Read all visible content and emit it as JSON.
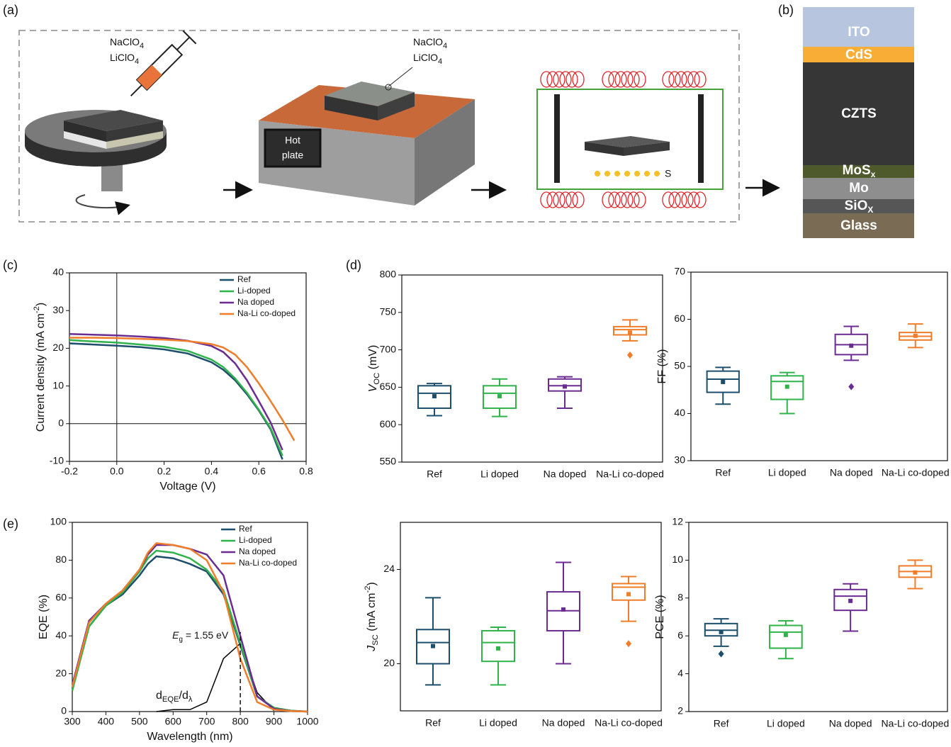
{
  "panel_labels": [
    "(a)",
    "(b)",
    "(c)",
    "(d)",
    "(e)"
  ],
  "schematic": {
    "spin_labels": [
      [
        "NaClO",
        {
          "sub": "4"
        }
      ],
      [
        "LiClO",
        {
          "sub": "4"
        }
      ]
    ],
    "hotplate_labels": [
      [
        "NaClO",
        {
          "sub": "4"
        }
      ],
      [
        "LiClO",
        {
          "sub": "4"
        }
      ]
    ],
    "hot_plate": [
      "Hot",
      "plate"
    ],
    "sulfur": "S"
  },
  "stack": {
    "layers": [
      "ITO",
      "CdS",
      "CZTS",
      [
        "MoS",
        {
          "sub": "x"
        }
      ],
      "Mo",
      [
        "SiO",
        {
          "sub": "X"
        }
      ],
      "Glass"
    ]
  },
  "chart_data": [
    {
      "type": "line",
      "xlabel": "Voltage (V)",
      "ylabel": [
        "Current density (mA cm",
        {
          "sup": "-2"
        },
        ")"
      ],
      "xlim": [
        -0.2,
        0.8
      ],
      "xticks": [
        -0.2,
        {
          "value": 0,
          "label": "0.0"
        },
        0.2,
        0.4,
        0.6,
        0.8
      ],
      "ylim": [
        -10,
        40
      ],
      "yticks": [
        -10,
        0,
        10,
        20,
        30,
        40
      ],
      "axes_at_zero": true,
      "legend": "upper right",
      "x": [
        -0.2,
        -0.1,
        0,
        0.1,
        0.2,
        0.3,
        0.4,
        0.45,
        0.5,
        0.55,
        0.6,
        0.65,
        0.7,
        0.75
      ],
      "series": [
        {
          "name": "Ref",
          "color": "#1d4e6b",
          "values": [
            21.3,
            21.0,
            20.7,
            20.3,
            19.7,
            18.6,
            16.3,
            14.3,
            11.5,
            7.8,
            3.5,
            -1.5,
            -9.5,
            null
          ]
        },
        {
          "name": "Li-doped",
          "color": "#2fb34a",
          "values": [
            22.2,
            21.8,
            21.5,
            21.0,
            20.4,
            19.3,
            17.0,
            15.0,
            12.0,
            8.2,
            3.7,
            -1.2,
            -8.5,
            null
          ]
        },
        {
          "name": "Na doped",
          "color": "#6a2c91",
          "values": [
            23.8,
            23.6,
            23.4,
            23.1,
            22.7,
            22.0,
            20.6,
            19.0,
            16.0,
            11.5,
            6.0,
            0.3,
            -7.0,
            null
          ]
        },
        {
          "name": "Na-Li co-doped",
          "color": "#f07d2a",
          "values": [
            22.8,
            22.8,
            22.7,
            22.5,
            22.3,
            21.9,
            21.1,
            20.2,
            18.3,
            15.0,
            10.7,
            6.0,
            1.0,
            -4.5
          ]
        }
      ]
    },
    {
      "type": "box",
      "ylabel": [
        {
          "i": "V"
        },
        {
          "sub": "OC"
        },
        " (mV)"
      ],
      "ylim": [
        550,
        800
      ],
      "yticks": [
        550,
        600,
        650,
        700,
        750,
        800
      ],
      "categories": [
        "Ref",
        "Li doped",
        "Na doped",
        "Na-Li co-doped"
      ],
      "colors": [
        "#1d4e6b",
        "#2fb34a",
        "#6a2c91",
        "#f07d2a"
      ],
      "boxes": [
        {
          "min": 612,
          "q1": 622,
          "median": 642,
          "q3": 652,
          "max": 655,
          "mean": 638,
          "outliers": []
        },
        {
          "min": 611,
          "q1": 622,
          "median": 642,
          "q3": 652,
          "max": 661,
          "mean": 638,
          "outliers": []
        },
        {
          "min": 622,
          "q1": 645,
          "median": 652,
          "q3": 661,
          "max": 664,
          "mean": 651,
          "outliers": []
        },
        {
          "min": 712,
          "q1": 720,
          "median": 727,
          "q3": 731,
          "max": 740,
          "mean": 723,
          "outliers": [
            693
          ]
        }
      ]
    },
    {
      "type": "box",
      "ylabel": "FF (%)",
      "ylim": [
        30,
        70
      ],
      "yticks": [
        30,
        40,
        50,
        60,
        70
      ],
      "categories": [
        "Ref",
        "Li doped",
        "Na doped",
        "Na-Li co-doped"
      ],
      "colors": [
        "#1d4e6b",
        "#2fb34a",
        "#6a2c91",
        "#f07d2a"
      ],
      "boxes": [
        {
          "min": 42,
          "q1": 44.5,
          "median": 47.3,
          "q3": 49,
          "max": 49.8,
          "mean": 46.7,
          "outliers": []
        },
        {
          "min": 40,
          "q1": 43,
          "median": 46.8,
          "q3": 48,
          "max": 48.7,
          "mean": 45.7,
          "outliers": []
        },
        {
          "min": 51.3,
          "q1": 52.5,
          "median": 54.6,
          "q3": 56.8,
          "max": 58.5,
          "mean": 54.4,
          "outliers": [
            45.7
          ]
        },
        {
          "min": 54,
          "q1": 55.6,
          "median": 56.4,
          "q3": 57.2,
          "max": 59,
          "mean": 56.5,
          "outliers": []
        }
      ]
    },
    {
      "type": "line",
      "xlabel": "Wavelength (nm)",
      "ylabel": "EQE (%)",
      "xlim": [
        300,
        1000
      ],
      "xticks": [
        300,
        400,
        500,
        600,
        700,
        800,
        900,
        1000
      ],
      "ylim": [
        0,
        100
      ],
      "yticks": [
        0,
        20,
        40,
        60,
        80,
        100
      ],
      "legend": "upper right",
      "x": [
        300,
        350,
        400,
        450,
        500,
        525,
        550,
        600,
        650,
        700,
        750,
        800,
        850,
        900,
        950,
        1000
      ],
      "series": [
        {
          "name": "Ref",
          "color": "#1d4e6b",
          "values": [
            12,
            45,
            56,
            62,
            72,
            78,
            82,
            81,
            78,
            74,
            62,
            35,
            8,
            2,
            0.5,
            0
          ]
        },
        {
          "name": "Li-doped",
          "color": "#2fb34a",
          "values": [
            11,
            45,
            56,
            63,
            74,
            81,
            85,
            84,
            81,
            75,
            64,
            36,
            8,
            2,
            0.5,
            0
          ]
        },
        {
          "name": "Na doped",
          "color": "#6a2c91",
          "values": [
            14,
            48,
            57,
            64,
            75,
            83,
            88,
            88,
            86,
            83,
            72,
            40,
            8,
            1.5,
            0.3,
            0
          ]
        },
        {
          "name": "Na-Li co-doped",
          "color": "#f07d2a",
          "values": [
            13,
            47,
            57,
            64,
            75,
            84,
            89,
            88,
            86,
            80,
            63,
            28,
            5,
            1,
            0.3,
            0
          ]
        }
      ],
      "curve": {
        "color": "#000000",
        "values": [
          null,
          null,
          null,
          null,
          null,
          null,
          0,
          1,
          1,
          5,
          28,
          36,
          10,
          0.5,
          null,
          null
        ]
      },
      "curve_label": [
        "d",
        {
          "sub": "EQE"
        },
        "/d",
        {
          "sub": "λ"
        }
      ],
      "marker_line": {
        "x": 800,
        "label": [
          {
            "i": "E"
          },
          {
            "sub": "g"
          },
          " = 1.55 eV"
        ]
      }
    },
    {
      "type": "box",
      "ylabel": [
        {
          "i": "J"
        },
        {
          "sub": "SC"
        },
        " (mA cm",
        {
          "sup": "-2"
        },
        ")"
      ],
      "ylim": [
        18,
        26
      ],
      "yticks": [
        20,
        24
      ],
      "categories": [
        "Ref",
        "Li doped",
        "Na doped",
        "Na-Li co-doped"
      ],
      "colors": [
        "#1d4e6b",
        "#2fb34a",
        "#6a2c91",
        "#f07d2a"
      ],
      "boxes": [
        {
          "min": 19.1,
          "q1": 20,
          "median": 20.9,
          "q3": 21.45,
          "max": 22.8,
          "mean": 20.75,
          "outliers": []
        },
        {
          "min": 19.1,
          "q1": 20.1,
          "median": 20.9,
          "q3": 21.4,
          "max": 21.55,
          "mean": 20.65,
          "outliers": []
        },
        {
          "min": 20,
          "q1": 21.4,
          "median": 22.25,
          "q3": 23.05,
          "max": 24.3,
          "mean": 22.3,
          "outliers": []
        },
        {
          "min": 21.8,
          "q1": 22.7,
          "median": 23.25,
          "q3": 23.4,
          "max": 23.7,
          "mean": 22.95,
          "outliers": [
            20.85
          ]
        }
      ]
    },
    {
      "type": "box",
      "ylabel": "PCE (%)",
      "ylim": [
        2,
        12
      ],
      "yticks": [
        2,
        4,
        6,
        8,
        10,
        12
      ],
      "categories": [
        "Ref",
        "Li doped",
        "Na doped",
        "Na-Li co-doped"
      ],
      "colors": [
        "#1d4e6b",
        "#2fb34a",
        "#6a2c91",
        "#f07d2a"
      ],
      "boxes": [
        {
          "min": 5.45,
          "q1": 6.0,
          "median": 6.3,
          "q3": 6.65,
          "max": 6.9,
          "mean": 6.2,
          "outliers": [
            5.05
          ]
        },
        {
          "min": 4.8,
          "q1": 5.35,
          "median": 6.2,
          "q3": 6.55,
          "max": 6.8,
          "mean": 6.05,
          "outliers": []
        },
        {
          "min": 6.25,
          "q1": 7.35,
          "median": 8.1,
          "q3": 8.45,
          "max": 8.75,
          "mean": 7.85,
          "outliers": []
        },
        {
          "min": 8.5,
          "q1": 9.1,
          "median": 9.4,
          "q3": 9.7,
          "max": 10.0,
          "mean": 9.35,
          "outliers": []
        }
      ]
    }
  ]
}
